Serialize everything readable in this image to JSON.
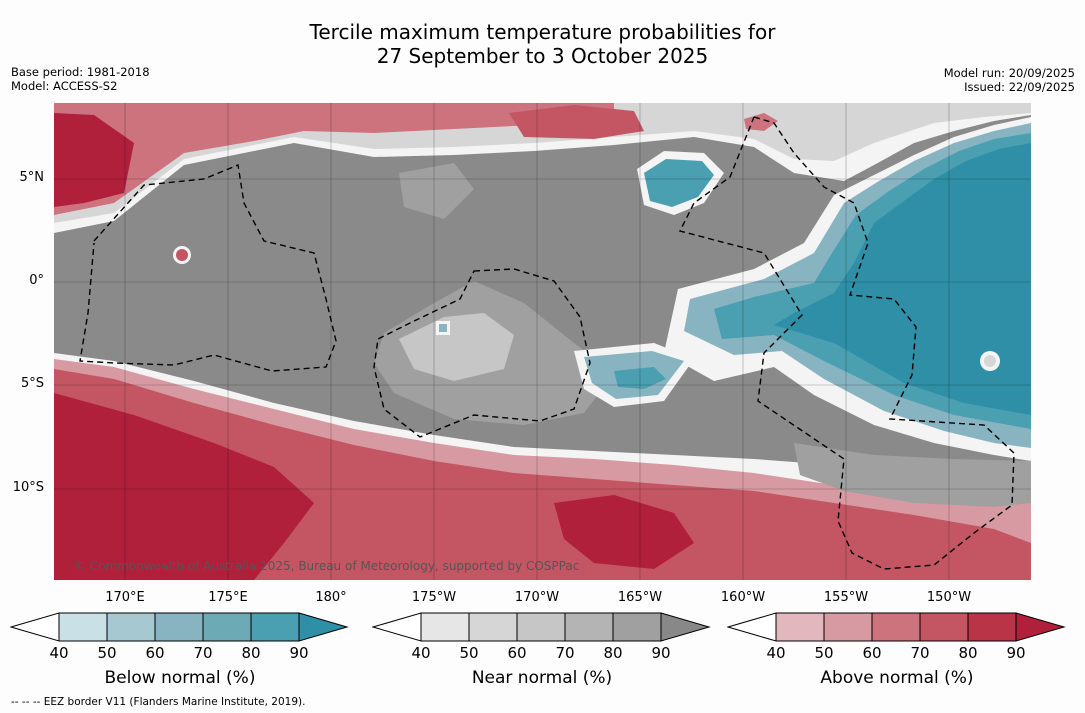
{
  "header": {
    "title_line1": "Tercile maximum temperature probabilities for",
    "title_line2": "27 September to 3 October 2025",
    "base_period": "Base period: 1981-2018",
    "model": "Model: ACCESS-S2",
    "model_run": "Model run: 20/09/2025",
    "issued": "Issued: 22/09/2025"
  },
  "map": {
    "lat_labels": [
      "5°N",
      "0°",
      "5°S",
      "10°S"
    ],
    "lon_labels": [
      "170°E",
      "175°E",
      "180°",
      "175°W",
      "170°W",
      "165°W",
      "160°W",
      "155°W",
      "150°W"
    ],
    "copyright": "© Commonwealth of Australia 2025, Bureau of Meteorology, supported by COSPPac"
  },
  "legends": [
    {
      "title": "Below normal (%)",
      "ticks": [
        "40",
        "50",
        "60",
        "70",
        "80",
        "90"
      ],
      "colors": [
        "#c8e0e6",
        "#a6c8d0",
        "#88b4c1",
        "#6caab6",
        "#4a9fb0",
        "#2e8fa6"
      ]
    },
    {
      "title": "Near normal (%)",
      "ticks": [
        "40",
        "50",
        "60",
        "70",
        "80",
        "90"
      ],
      "colors": [
        "#e6e6e6",
        "#d6d6d6",
        "#c6c6c6",
        "#b4b4b4",
        "#a0a0a0",
        "#888888"
      ]
    },
    {
      "title": "Above normal (%)",
      "ticks": [
        "40",
        "50",
        "60",
        "70",
        "80",
        "90"
      ],
      "colors": [
        "#e2b8be",
        "#d89aa2",
        "#cc737e",
        "#c45663",
        "#ba3447",
        "#b0203a"
      ]
    }
  ],
  "footnote": "--  --  -- EEZ border V11 (Flanders Marine Institute, 2019)."
}
